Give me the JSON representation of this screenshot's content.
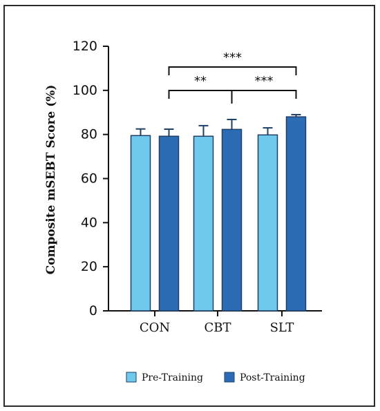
{
  "chart_data": {
    "type": "bar",
    "categories": [
      "CON",
      "CBT",
      "SLT"
    ],
    "series": [
      {
        "name": "Pre-Training",
        "values": [
          79.5,
          79.2,
          79.8
        ],
        "errors": [
          3.0,
          4.8,
          3.2
        ],
        "color": "#6ec9ec"
      },
      {
        "name": "Post-Training",
        "values": [
          79.2,
          82.3,
          88.0
        ],
        "errors": [
          3.2,
          4.5,
          1.0
        ],
        "color": "#2b6cb5"
      }
    ],
    "title": "",
    "xlabel": "",
    "ylabel": "Composite mSEBT Score (%)",
    "ylim": [
      0,
      120
    ],
    "yticks": [
      0,
      20,
      40,
      60,
      80,
      100,
      120
    ],
    "grid": false,
    "legend_position": "bottom",
    "significance": [
      {
        "from_category": "CON",
        "to_category": "SLT",
        "label": "***"
      },
      {
        "from_category": "CON",
        "to_category": "CBT",
        "label": "**"
      },
      {
        "from_category": "CBT",
        "to_category": "SLT",
        "label": "***"
      }
    ],
    "bar_outline_color": "#1f3f66",
    "axis_color": "#111111"
  }
}
